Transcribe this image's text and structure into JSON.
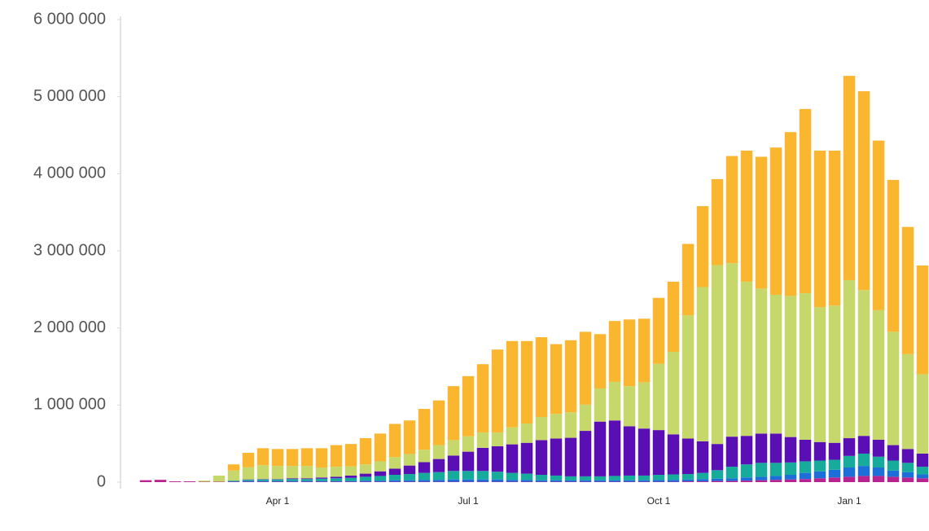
{
  "chart_data": {
    "type": "bar",
    "stacked": true,
    "categories": [
      null,
      null,
      null,
      null,
      null,
      null,
      null,
      null,
      null,
      "Apr 1",
      null,
      null,
      null,
      null,
      null,
      null,
      null,
      null,
      null,
      null,
      null,
      null,
      "Jul 1",
      null,
      null,
      null,
      null,
      null,
      null,
      null,
      null,
      null,
      null,
      null,
      null,
      "Oct 1",
      null,
      null,
      null,
      null,
      null,
      null,
      null,
      null,
      null,
      null,
      null,
      null,
      "Jan 1",
      null,
      null,
      null,
      null,
      null
    ],
    "series": [
      {
        "color": "#b8248f",
        "values": [
          25000,
          30000,
          10000,
          10000,
          5000,
          5000,
          5000,
          5000,
          5000,
          5000,
          5000,
          5000,
          5000,
          5000,
          5000,
          5000,
          5000,
          5000,
          5000,
          5000,
          5000,
          5000,
          5000,
          5000,
          5000,
          5000,
          5000,
          5000,
          5000,
          5000,
          5000,
          5000,
          5000,
          5000,
          5000,
          5000,
          5000,
          10000,
          10000,
          15000,
          15000,
          20000,
          25000,
          30000,
          35000,
          40000,
          50000,
          60000,
          70000,
          80000,
          80000,
          70000,
          60000,
          50000
        ]
      },
      {
        "color": "#1c6fd8",
        "values": [
          0,
          0,
          0,
          0,
          0,
          0,
          5000,
          10000,
          10000,
          10000,
          10000,
          10000,
          10000,
          10000,
          10000,
          15000,
          15000,
          20000,
          20000,
          25000,
          25000,
          30000,
          30000,
          30000,
          30000,
          25000,
          25000,
          20000,
          20000,
          20000,
          20000,
          20000,
          20000,
          20000,
          20000,
          25000,
          25000,
          25000,
          30000,
          30000,
          35000,
          40000,
          45000,
          50000,
          60000,
          80000,
          90000,
          100000,
          120000,
          130000,
          110000,
          80000,
          70000,
          50000
        ]
      },
      {
        "color": "#17ab9c",
        "values": [
          0,
          0,
          0,
          0,
          0,
          0,
          10000,
          15000,
          20000,
          20000,
          25000,
          25000,
          30000,
          35000,
          40000,
          50000,
          60000,
          70000,
          80000,
          90000,
          100000,
          110000,
          110000,
          110000,
          100000,
          90000,
          80000,
          70000,
          60000,
          50000,
          50000,
          50000,
          55000,
          60000,
          60000,
          65000,
          70000,
          70000,
          80000,
          110000,
          150000,
          170000,
          180000,
          170000,
          160000,
          150000,
          140000,
          130000,
          150000,
          160000,
          140000,
          130000,
          120000,
          100000
        ]
      },
      {
        "color": "#5a0fb4",
        "values": [
          0,
          0,
          0,
          0,
          0,
          0,
          0,
          5000,
          5000,
          5000,
          10000,
          10000,
          15000,
          20000,
          30000,
          40000,
          60000,
          80000,
          110000,
          140000,
          170000,
          200000,
          250000,
          300000,
          330000,
          370000,
          400000,
          450000,
          480000,
          500000,
          590000,
          710000,
          720000,
          640000,
          610000,
          580000,
          520000,
          460000,
          410000,
          340000,
          390000,
          370000,
          380000,
          380000,
          330000,
          280000,
          240000,
          220000,
          230000,
          230000,
          220000,
          200000,
          180000,
          170000
        ]
      },
      {
        "color": "#c6d86c",
        "values": [
          0,
          0,
          0,
          0,
          15000,
          80000,
          130000,
          160000,
          180000,
          170000,
          160000,
          160000,
          130000,
          130000,
          120000,
          120000,
          130000,
          150000,
          150000,
          160000,
          180000,
          200000,
          200000,
          200000,
          180000,
          220000,
          250000,
          300000,
          320000,
          330000,
          340000,
          430000,
          500000,
          520000,
          600000,
          860000,
          1070000,
          1600000,
          2000000,
          2320000,
          2250000,
          2000000,
          1880000,
          1800000,
          1830000,
          1900000,
          1750000,
          1780000,
          2050000,
          1890000,
          1680000,
          1470000,
          1230000,
          1030000
        ]
      },
      {
        "color": "#fbb630",
        "values": [
          0,
          0,
          0,
          0,
          0,
          0,
          80000,
          185000,
          220000,
          220000,
          220000,
          230000,
          250000,
          280000,
          290000,
          340000,
          360000,
          430000,
          435000,
          530000,
          580000,
          700000,
          780000,
          885000,
          1075000,
          1120000,
          1070000,
          1035000,
          905000,
          935000,
          945000,
          705000,
          790000,
          865000,
          825000,
          855000,
          910000,
          925000,
          1050000,
          1115000,
          1390000,
          1700000,
          1710000,
          1910000,
          2125000,
          2390000,
          2030000,
          2010000,
          2650000,
          2580000,
          2200000,
          1970000,
          1650000,
          1410000
        ]
      }
    ],
    "ylim": [
      0,
      6000000
    ],
    "yticks": [
      0,
      {
        "value": 1000000,
        "label": "1 000 000"
      },
      {
        "value": 2000000,
        "label": "2 000 000"
      },
      {
        "value": 3000000,
        "label": "3 000 000"
      },
      {
        "value": 4000000,
        "label": "4 000 000"
      },
      {
        "value": 5000000,
        "label": "5 000 000"
      },
      {
        "value": 6000000,
        "label": "6 000 000"
      }
    ]
  }
}
